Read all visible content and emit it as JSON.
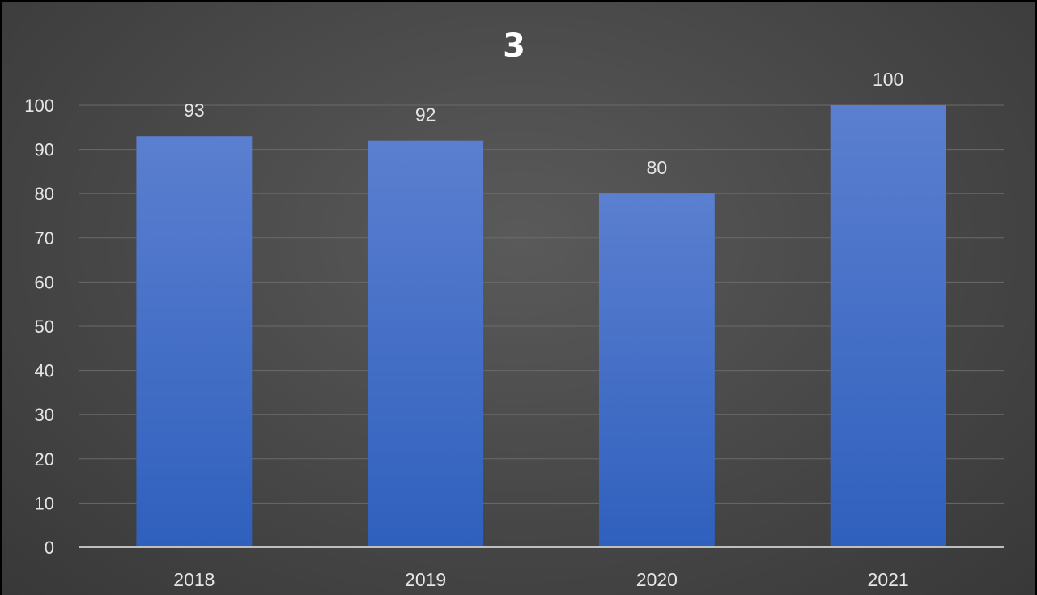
{
  "chart_data": {
    "type": "bar",
    "title": "3",
    "categories": [
      "2018",
      "2019",
      "2020",
      "2021"
    ],
    "series": [
      {
        "values": [
          93,
          92,
          80,
          100
        ]
      }
    ],
    "data_labels": [
      "93",
      "92",
      "80",
      "100"
    ],
    "ylim": [
      0,
      100
    ],
    "yticks": [
      "0",
      "10",
      "20",
      "30",
      "40",
      "50",
      "60",
      "70",
      "80",
      "90",
      "100"
    ],
    "grid": true,
    "legend": "none",
    "colors": {
      "bar_top": "#5b7fd0",
      "bar_bottom": "#2f60bd",
      "background": "#474747",
      "text": "#e6e6e6"
    }
  }
}
